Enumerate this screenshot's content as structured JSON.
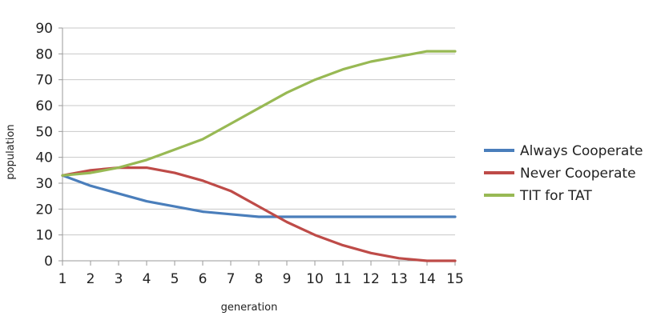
{
  "chart_data": {
    "type": "line",
    "xlabel": "generation",
    "ylabel": "population",
    "x": [
      1,
      2,
      3,
      4,
      5,
      6,
      7,
      8,
      9,
      10,
      11,
      12,
      13,
      14,
      15
    ],
    "ylim": [
      0,
      90
    ],
    "yticks": [
      0,
      10,
      20,
      30,
      40,
      50,
      60,
      70,
      80,
      90
    ],
    "grid": true,
    "legend_position": "right",
    "series": [
      {
        "name": "Always Cooperate",
        "color": "#4a7ebb",
        "values": [
          33,
          29,
          26,
          23,
          21,
          19,
          18,
          17,
          17,
          17,
          17,
          17,
          17,
          17,
          17
        ]
      },
      {
        "name": "Never Cooperate",
        "color": "#be4b48",
        "values": [
          33,
          35,
          36,
          36,
          34,
          31,
          27,
          21,
          15,
          10,
          6,
          3,
          1,
          0,
          0
        ]
      },
      {
        "name": "TIT for TAT",
        "color": "#98b954",
        "values": [
          33,
          34,
          36,
          39,
          43,
          47,
          53,
          59,
          65,
          70,
          74,
          77,
          79,
          81,
          81
        ]
      }
    ]
  }
}
